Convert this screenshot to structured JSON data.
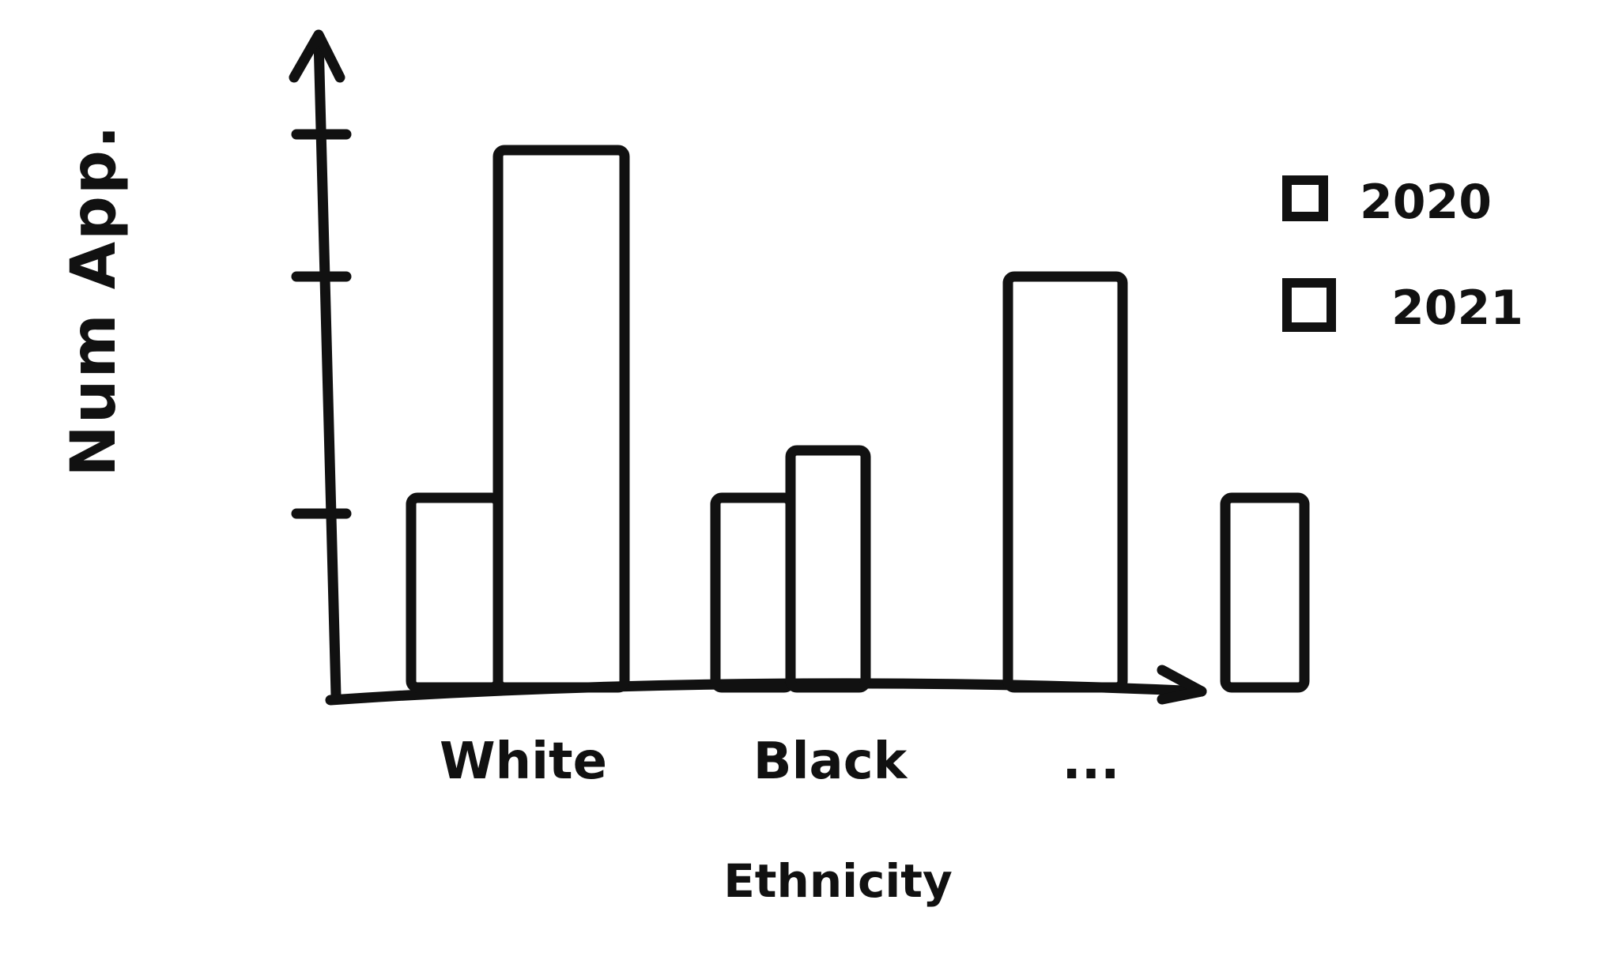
{
  "chart_data": {
    "type": "bar",
    "title": "",
    "xlabel": "Ethnicity",
    "ylabel": "Num App.",
    "categories": [
      "White",
      "Black",
      "..."
    ],
    "series": [
      {
        "name": "2020",
        "values": [
          1.2,
          1.2,
          2.6
        ],
        "pattern": "empty"
      },
      {
        "name": "2021",
        "values": [
          3.4,
          1.5,
          1.2
        ],
        "pattern": "hatched"
      }
    ],
    "ylim": [
      0,
      4.1
    ],
    "yticks": [
      1.1,
      2.6,
      3.5
    ],
    "grid": false,
    "legend": "top-right",
    "colors": {
      "ink": "#111111",
      "background": "#ffffff"
    }
  }
}
